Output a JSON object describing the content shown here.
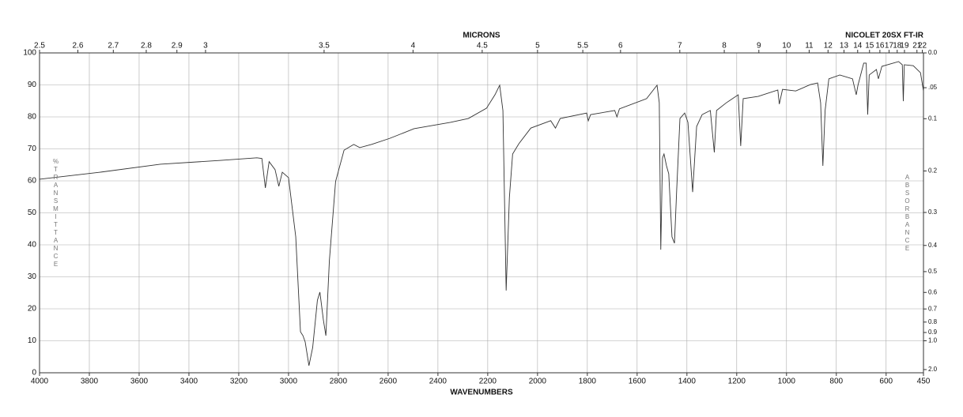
{
  "chart_data": {
    "type": "line",
    "title": "NICOLET 20SX FT-IR",
    "x_label": "WAVENUMBERS",
    "y_label": "%TRANSMITTANCE",
    "y2_label": "ABSORBANCE",
    "top_axis_label": "MICRONS",
    "color": "#333333",
    "grid": true,
    "xlim": [
      4000,
      450
    ],
    "ylim": [
      0,
      100
    ],
    "xticks": [
      4000,
      3800,
      3600,
      3400,
      3200,
      3000,
      2800,
      2600,
      2400,
      2200,
      2000,
      1800,
      1600,
      1400,
      1200,
      1000,
      800,
      600,
      450
    ],
    "yticks": [
      0,
      10,
      20,
      30,
      40,
      50,
      60,
      70,
      80,
      90,
      100
    ],
    "top_ticks": [
      2.5,
      2.6,
      2.7,
      2.8,
      2.9,
      3,
      3.5,
      4,
      4.5,
      5,
      5.5,
      6,
      7,
      8,
      9,
      10,
      11,
      12,
      13,
      14,
      15,
      16,
      17,
      18,
      19,
      21,
      22
    ],
    "y2ticks": [
      {
        "value": 0,
        "label": "0.0"
      },
      {
        "value": 0.05,
        "label": ".05"
      },
      0.1,
      0.2,
      0.3,
      0.4,
      0.5,
      0.6,
      0.7,
      0.8,
      0.9,
      {
        "value": 1,
        "label": "1.0"
      },
      {
        "value": 2,
        "label": "2.0"
      }
    ],
    "x": [
      4000,
      3757,
      3515,
      3272,
      3127,
      3107,
      3093,
      3078,
      3054,
      3039,
      3025,
      3000,
      2971,
      2952,
      2942,
      2933,
      2918,
      2903,
      2884,
      2874,
      2860,
      2850,
      2836,
      2811,
      2777,
      2738,
      2714,
      2666,
      2593,
      2496,
      2350,
      2278,
      2205,
      2171,
      2152,
      2139,
      2126,
      2113,
      2100,
      2075,
      2027,
      1947,
      1928,
      1909,
      1803,
      1796,
      1787,
      1690,
      1681,
      1671,
      1562,
      1520,
      1511,
      1505,
      1498,
      1492,
      1482,
      1473,
      1460,
      1450,
      1441,
      1428,
      1409,
      1396,
      1377,
      1361,
      1339,
      1306,
      1290,
      1281,
      1242,
      1194,
      1184,
      1174,
      1114,
      1035,
      1029,
      1016,
      963,
      904,
      875,
      863,
      854,
      845,
      830,
      786,
      735,
      720,
      713,
      690,
      680,
      674,
      668,
      639,
      631,
      617,
      550,
      535,
      531,
      527,
      491,
      462,
      450
    ],
    "values": [
      60.5,
      62.7,
      65.2,
      66.4,
      67.2,
      67,
      57.8,
      66,
      63.5,
      58.3,
      62.7,
      61,
      42.5,
      12.8,
      11.6,
      9.6,
      2.2,
      7.9,
      22.7,
      25.2,
      16.5,
      11.6,
      35,
      59.8,
      69.6,
      71.4,
      70.4,
      71.4,
      73.3,
      76.3,
      78.3,
      79.5,
      82.7,
      86.9,
      89.9,
      82,
      25.7,
      54.8,
      68.4,
      71.6,
      76.5,
      78.8,
      76.5,
      79.5,
      81.2,
      78.8,
      80.7,
      82,
      80,
      82.5,
      85.7,
      89.9,
      84.4,
      38.5,
      67.2,
      68.4,
      64.7,
      62.2,
      42.5,
      40.5,
      57.3,
      79.5,
      81.2,
      78.3,
      56.5,
      77,
      80.7,
      82,
      68.9,
      82,
      84.4,
      86.9,
      70.9,
      85.7,
      86.4,
      88.4,
      84,
      88.6,
      88.1,
      90.1,
      90.6,
      84.4,
      64.7,
      82,
      91.9,
      93.1,
      91.9,
      86.9,
      89.9,
      96.8,
      96.8,
      80.7,
      93.1,
      94.8,
      91.9,
      95.8,
      97.3,
      96.3,
      84.9,
      96.3,
      96,
      93.8,
      88.1
    ]
  }
}
